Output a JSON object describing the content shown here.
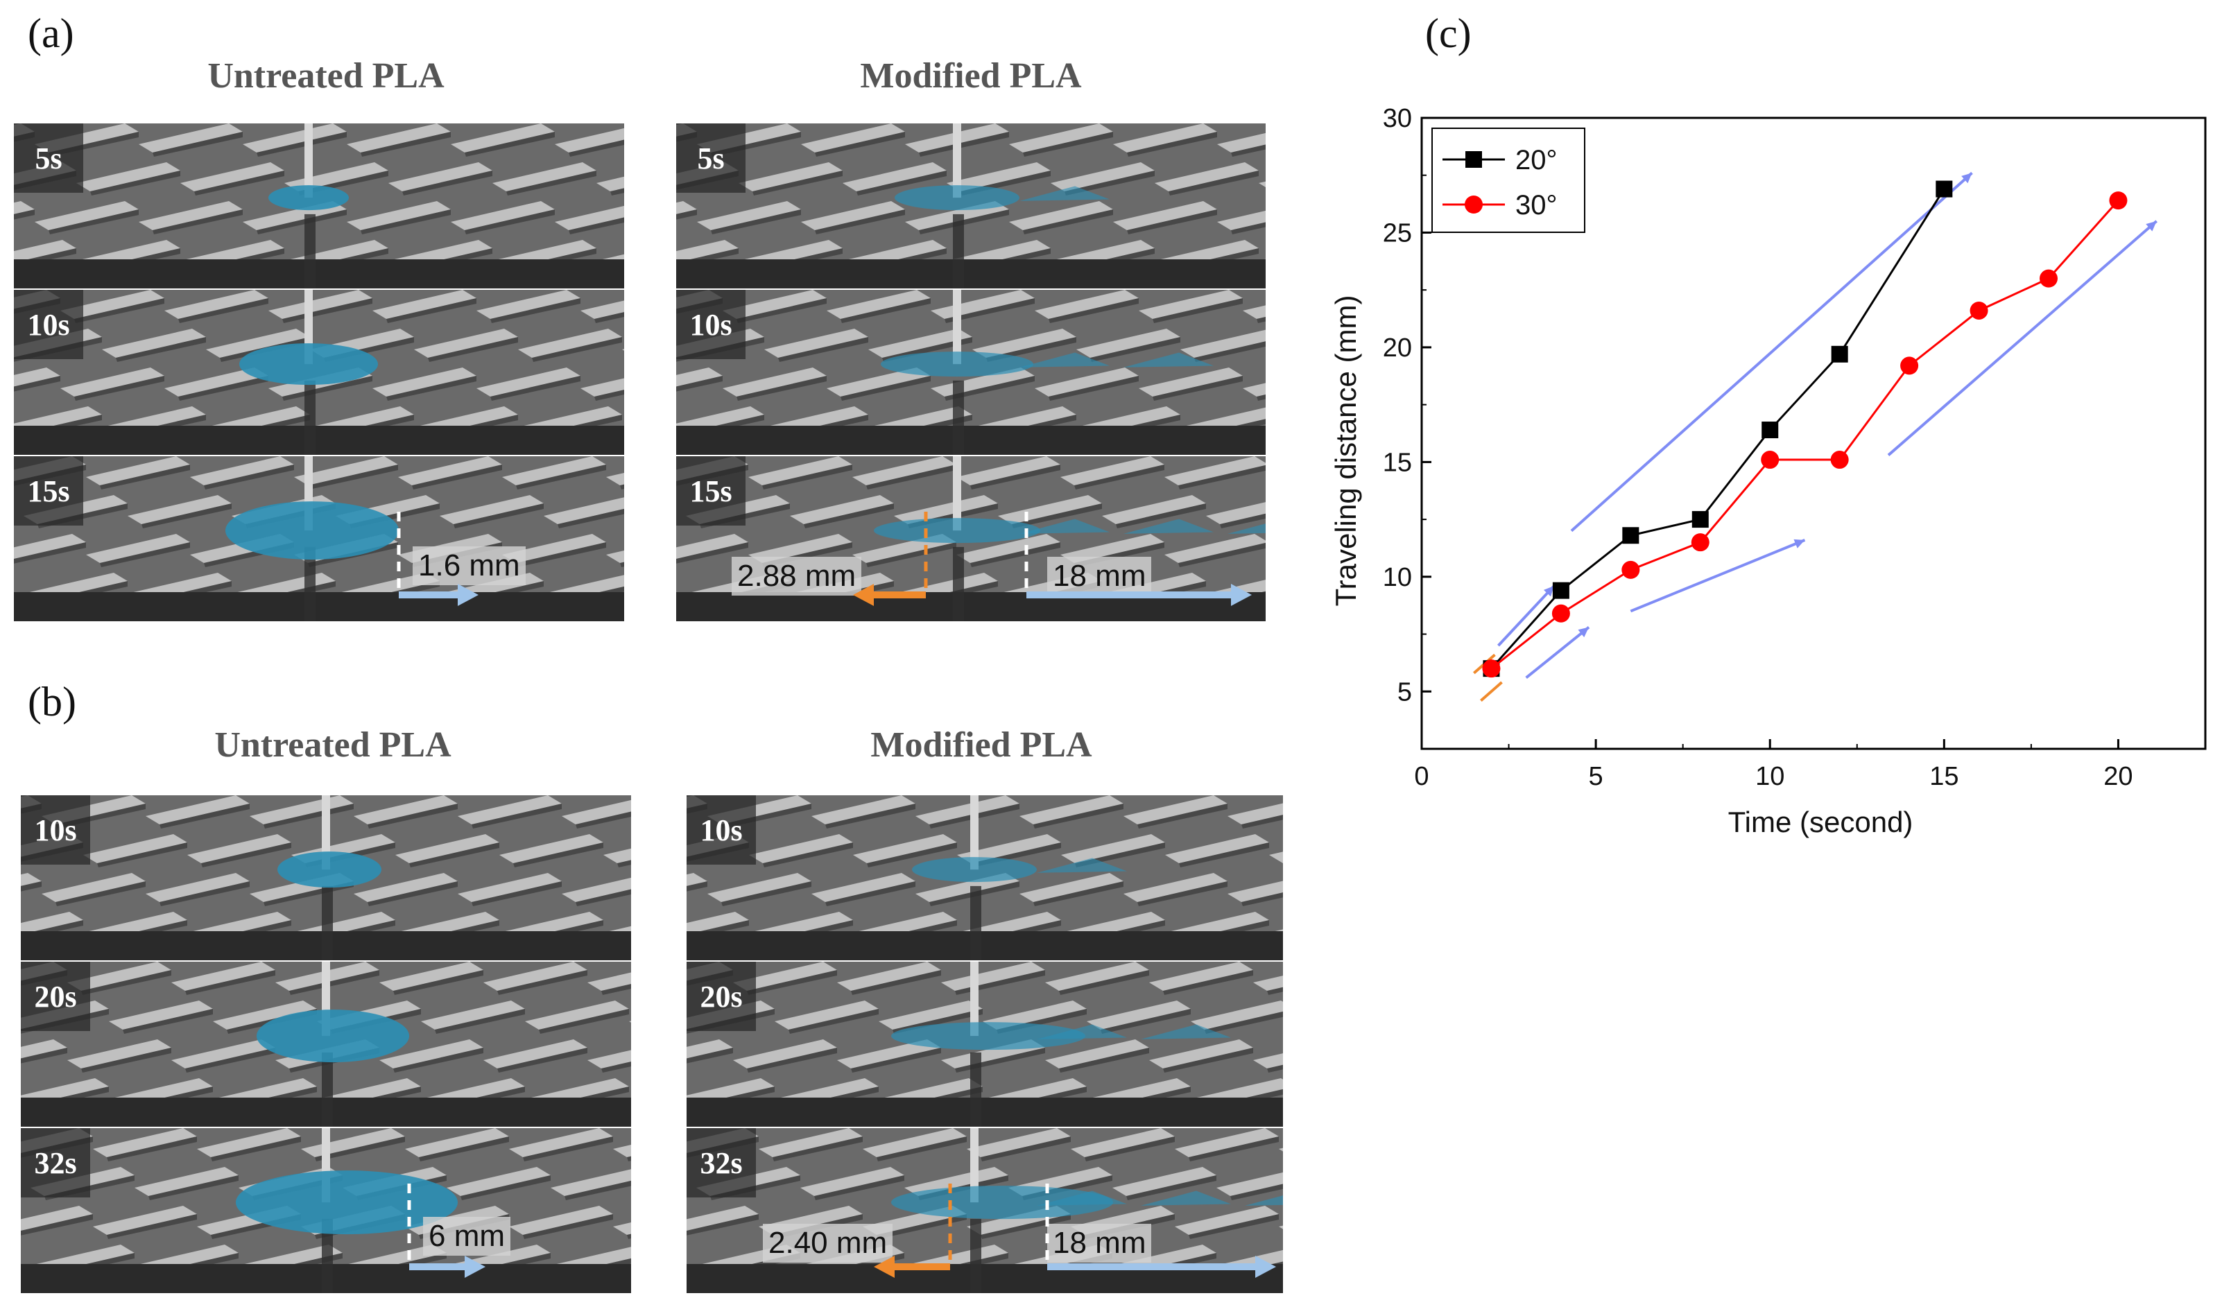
{
  "figure": {
    "panel_a": {
      "label": "(a)",
      "left_title": "Untreated PLA",
      "right_title": "Modified PLA",
      "left_times": [
        "5s",
        "10s",
        "15s"
      ],
      "right_times": [
        "5s",
        "10s",
        "15s"
      ],
      "left_measure": "1.6 mm",
      "right_measure_back": "2.88 mm",
      "right_measure_forward": "18 mm"
    },
    "panel_b": {
      "label": "(b)",
      "left_title": "Untreated PLA",
      "right_title": "Modified PLA",
      "left_times": [
        "10s",
        "20s",
        "32s"
      ],
      "right_times": [
        "10s",
        "20s",
        "32s"
      ],
      "left_measure": "6 mm",
      "right_measure_back": "2.40 mm",
      "right_measure_forward": "18 mm"
    },
    "panel_c": {
      "label": "(c)"
    }
  },
  "colors": {
    "water": "#2b8fb5",
    "arrow_light_blue": "#9fc4ea",
    "arrow_orange": "#f08a2c",
    "series_black": "#000000",
    "series_red": "#ff0000",
    "trend_arrow": "#7f8cf5"
  },
  "chart_data": {
    "type": "line",
    "xlabel": "Time (second)",
    "ylabel": "Traveling distance (mm)",
    "xlim": [
      0,
      22.5
    ],
    "ylim": [
      2.5,
      30
    ],
    "xticks": [
      0,
      5,
      10,
      15,
      20
    ],
    "yticks": [
      5,
      10,
      15,
      20,
      25,
      30
    ],
    "legend_position": "top-left",
    "grid": false,
    "series": [
      {
        "name": "20°",
        "marker": "square",
        "color": "#000000",
        "x": [
          2,
          4,
          6,
          8,
          10,
          12,
          15
        ],
        "y": [
          6.0,
          9.4,
          11.8,
          12.5,
          16.4,
          19.7,
          26.9
        ]
      },
      {
        "name": "30°",
        "marker": "circle",
        "color": "#ff0000",
        "x": [
          2,
          4,
          6,
          8,
          10,
          12,
          14,
          16,
          18,
          20
        ],
        "y": [
          6.0,
          8.4,
          10.3,
          11.5,
          15.1,
          15.1,
          19.2,
          21.6,
          23.0,
          26.4
        ]
      }
    ]
  }
}
